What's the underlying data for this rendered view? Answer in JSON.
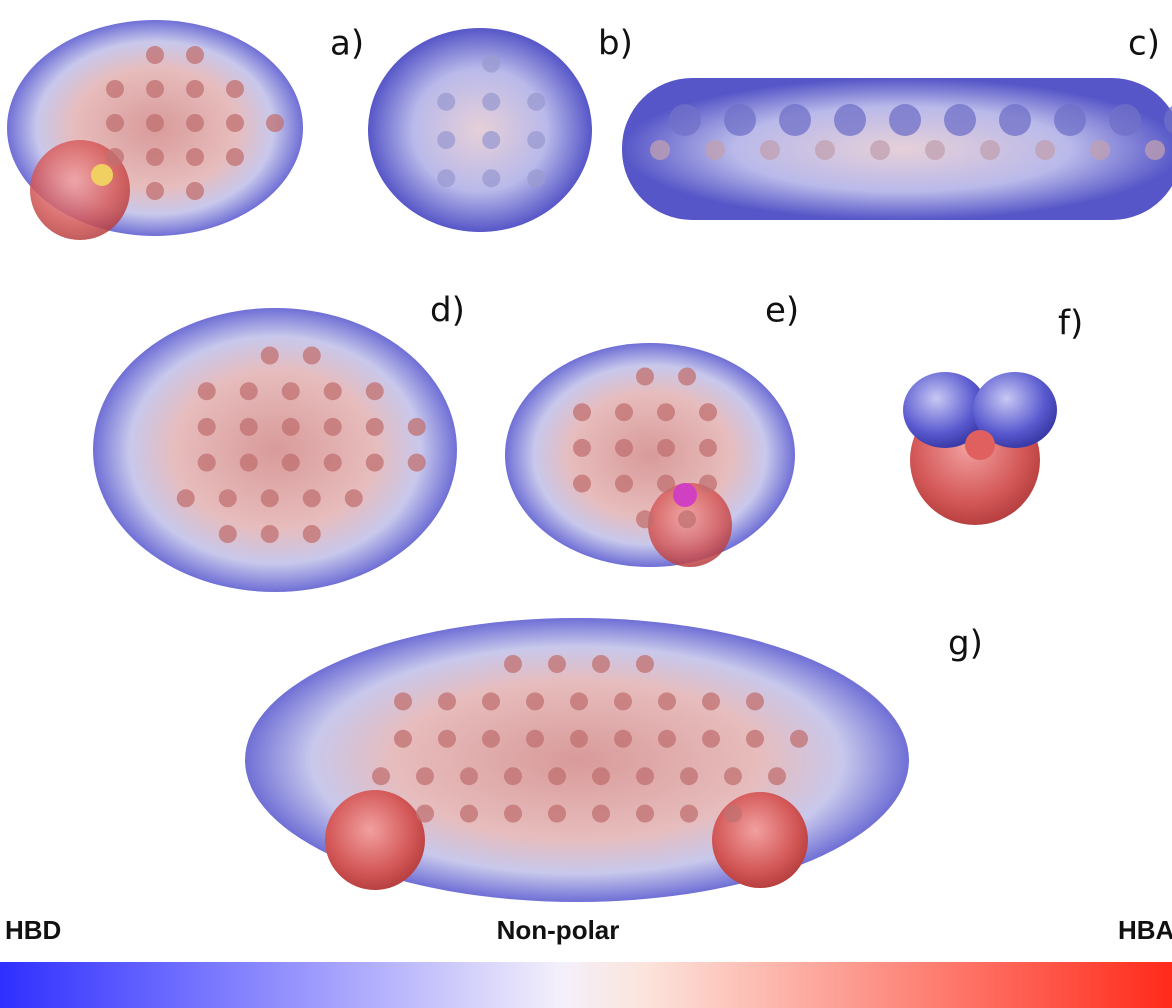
{
  "panels": [
    {
      "label": "a)"
    },
    {
      "label": "b)"
    },
    {
      "label": "c)"
    },
    {
      "label": "d)"
    },
    {
      "label": "e)"
    },
    {
      "label": "f)"
    },
    {
      "label": "g)"
    }
  ],
  "scale": {
    "left": "HBD",
    "center": "Non-polar",
    "right": "HBA"
  }
}
